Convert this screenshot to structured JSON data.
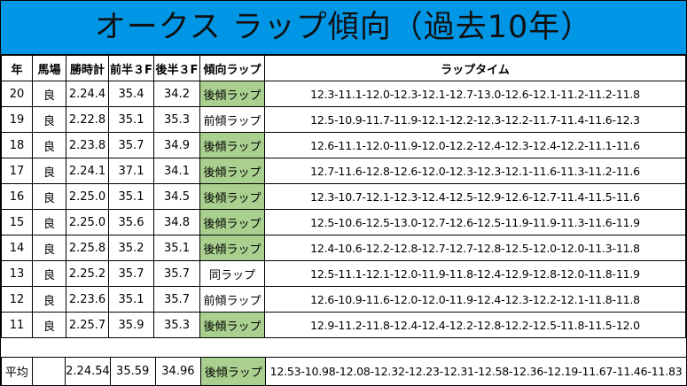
{
  "title": "オークス ラップ傾向（過去10年）",
  "headers": {
    "year": "年",
    "track": "馬場",
    "time": "勝時計",
    "first3f": "前半３F",
    "last3f": "後半３F",
    "trend": "傾向ラップ",
    "laps": "ラップタイム"
  },
  "rows": [
    {
      "year": "20",
      "track": "良",
      "time": "2.24.4",
      "first3f": "35.4",
      "last3f": "34.2",
      "trend": "後傾ラップ",
      "highlight": true,
      "laps": "12.3-11.1-12.0-12.3-12.1-12.7-13.0-12.6-12.1-11.2-11.2-11.8"
    },
    {
      "year": "19",
      "track": "良",
      "time": "2.22.8",
      "first3f": "35.1",
      "last3f": "35.3",
      "trend": "前傾ラップ",
      "highlight": false,
      "laps": "12.5-10.9-11.7-11.9-12.1-12.2-12.3-12.2-11.7-11.4-11.6-12.3"
    },
    {
      "year": "18",
      "track": "良",
      "time": "2.23.8",
      "first3f": "35.7",
      "last3f": "34.9",
      "trend": "後傾ラップ",
      "highlight": true,
      "laps": "12.6-11.1-12.0-11.9-12.0-12.2-12.4-12.3-12.4-12.2-11.1-11.6"
    },
    {
      "year": "17",
      "track": "良",
      "time": "2.24.1",
      "first3f": "37.1",
      "last3f": "34.1",
      "trend": "後傾ラップ",
      "highlight": true,
      "laps": "12.7-11.6-12.8-12.6-12.0-12.3-12.3-12.1-11.6-11.3-11.2-11.6"
    },
    {
      "year": "16",
      "track": "良",
      "time": "2.25.0",
      "first3f": "35.1",
      "last3f": "34.5",
      "trend": "後傾ラップ",
      "highlight": true,
      "laps": "12.3-10.7-12.1-12.3-12.4-12.5-12.9-12.6-12.7-11.4-11.5-11.6"
    },
    {
      "year": "15",
      "track": "良",
      "time": "2.25.0",
      "first3f": "35.6",
      "last3f": "34.8",
      "trend": "後傾ラップ",
      "highlight": true,
      "laps": "12.5-10.6-12.5-13.0-12.7-12.6-12.5-11.9-11.9-11.3-11.6-11.9"
    },
    {
      "year": "14",
      "track": "良",
      "time": "2.25.8",
      "first3f": "35.2",
      "last3f": "35.1",
      "trend": "後傾ラップ",
      "highlight": true,
      "laps": "12.4-10.6-12.2-12.8-12.7-12.7-12.8-12.5-12.0-12.0-11.3-11.8"
    },
    {
      "year": "13",
      "track": "良",
      "time": "2.25.2",
      "first3f": "35.7",
      "last3f": "35.7",
      "trend": "同ラップ",
      "highlight": false,
      "laps": "12.5-11.1-12.1-12.0-11.9-11.8-12.4-12.9-12.8-12.0-11.8-11.9"
    },
    {
      "year": "12",
      "track": "良",
      "time": "2.23.6",
      "first3f": "35.1",
      "last3f": "35.7",
      "trend": "前傾ラップ",
      "highlight": false,
      "laps": "12.6-10.9-11.6-12.0-12.0-11.9-12.4-12.3-12.2-12.1-11.8-11.8"
    },
    {
      "year": "11",
      "track": "良",
      "time": "2.25.7",
      "first3f": "35.9",
      "last3f": "35.3",
      "trend": "後傾ラップ",
      "highlight": true,
      "laps": "12.9-11.2-11.8-12.4-12.4-12.2-12.8-12.2-12.5-11.8-11.5-12.0"
    }
  ],
  "average": {
    "label": "平均",
    "track": "",
    "time": "2.24.54",
    "first3f": "35.59",
    "last3f": "34.96",
    "trend": "後傾ラップ",
    "highlight": true,
    "laps": "12.53-10.98-12.08-12.32-12.23-12.31-12.58-12.36-12.19-11.67-11.46-11.83"
  },
  "colors": {
    "title_bg": "#0096e6",
    "highlight_bg": "#a9d08e"
  }
}
